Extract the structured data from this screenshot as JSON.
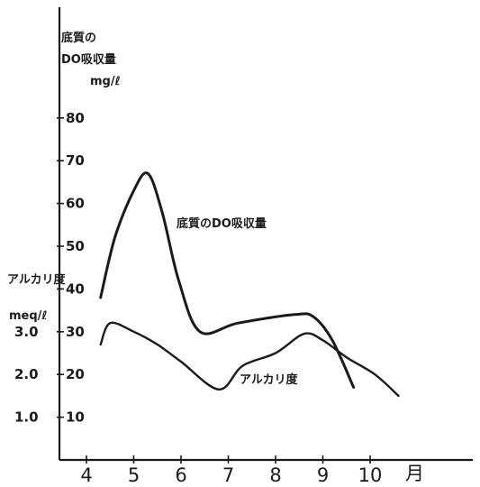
{
  "chart_data": {
    "type": "line",
    "categories": [
      "4",
      "5",
      "6",
      "7",
      "8",
      "9",
      "10"
    ],
    "x_unit": "月",
    "left_axis_title": [
      "底質の",
      "DO吸収量"
    ],
    "left_axis_unit": "mg/ℓ",
    "left_ticks": [
      "10",
      "20",
      "30",
      "40",
      "50",
      "60",
      "70",
      "80"
    ],
    "right_axis_title": "アルカリ度",
    "right_axis_unit": "meq/ℓ",
    "alk_ticks": [
      "1.0",
      "2.0",
      "3.0"
    ],
    "ylim": [
      0,
      90
    ],
    "grid": false,
    "series": [
      {
        "name": "底質のDO吸収量",
        "x": [
          4.3,
          4.6,
          5.0,
          5.3,
          5.6,
          5.95,
          6.4,
          7.2,
          8.4,
          8.8,
          9.2,
          9.65
        ],
        "values": [
          38,
          52,
          63,
          67,
          58,
          42,
          30,
          32,
          34,
          33.5,
          28,
          17
        ]
      },
      {
        "name": "アルカリ度",
        "x": [
          4.3,
          4.5,
          5.0,
          5.5,
          6.0,
          6.8,
          7.3,
          8.0,
          8.6,
          9.0,
          9.5,
          10.1,
          10.6
        ],
        "values": [
          27,
          32,
          30,
          27,
          23,
          16.5,
          22,
          25,
          29.5,
          28,
          24,
          20,
          15
        ]
      }
    ]
  }
}
